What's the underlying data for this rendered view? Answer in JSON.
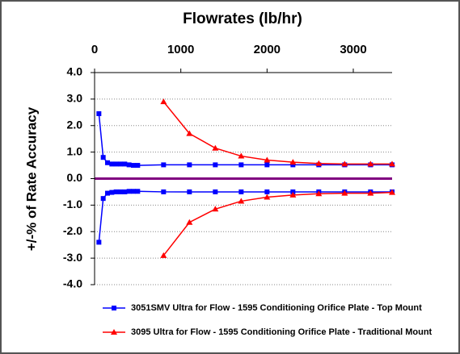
{
  "chart_data": {
    "type": "line",
    "title": "Flowrates (lb/hr)",
    "y_label": "+/-% of Rate Accuracy",
    "xlim": [
      0,
      3450
    ],
    "xticks": [
      0,
      1000,
      2000,
      3000
    ],
    "ylim": [
      -4,
      4
    ],
    "yticks": [
      {
        "value": 4,
        "label": "4.0"
      },
      {
        "value": 3,
        "label": "3.0"
      },
      {
        "value": 2,
        "label": "2.0"
      },
      {
        "value": 1,
        "label": "1.0"
      },
      {
        "value": 0,
        "label": "0.0"
      },
      {
        "value": -1,
        "label": "-1.0"
      },
      {
        "value": -2,
        "label": "-2.0"
      },
      {
        "value": -3,
        "label": "-3.0"
      },
      {
        "value": -4,
        "label": "-4.0"
      }
    ],
    "grid": true,
    "zero_line_color": "#800080",
    "legend": "bottom",
    "series": [
      {
        "name": "3051SMV Ultra for Flow - 1595 Conditioning Orifice Plate - Top Mount",
        "color": "#0000ff",
        "marker": "square",
        "x": [
          50,
          100,
          150,
          200,
          250,
          300,
          350,
          400,
          450,
          500,
          800,
          1100,
          1400,
          1700,
          2000,
          2300,
          2600,
          2900,
          3200,
          3450
        ],
        "values": [
          2.45,
          0.8,
          0.6,
          0.55,
          0.55,
          0.55,
          0.55,
          0.52,
          0.5,
          0.5,
          0.52,
          0.52,
          0.52,
          0.52,
          0.52,
          0.52,
          0.52,
          0.52,
          0.52,
          0.52
        ],
        "lower_values": [
          -2.4,
          -0.75,
          -0.55,
          -0.52,
          -0.5,
          -0.5,
          -0.5,
          -0.48,
          -0.48,
          -0.48,
          -0.5,
          -0.5,
          -0.5,
          -0.5,
          -0.5,
          -0.5,
          -0.5,
          -0.5,
          -0.5,
          -0.5
        ]
      },
      {
        "name": "3095 Ultra for Flow - 1595 Conditioning Orifice Plate - Traditional Mount",
        "color": "#ff0000",
        "marker": "triangle",
        "x": [
          800,
          1100,
          1400,
          1700,
          2000,
          2300,
          2600,
          2900,
          3200,
          3450
        ],
        "values": [
          2.9,
          1.7,
          1.15,
          0.85,
          0.7,
          0.62,
          0.57,
          0.55,
          0.55,
          0.55
        ],
        "lower_values": [
          -2.9,
          -1.65,
          -1.15,
          -0.85,
          -0.7,
          -0.62,
          -0.57,
          -0.55,
          -0.55,
          -0.52
        ]
      }
    ]
  }
}
